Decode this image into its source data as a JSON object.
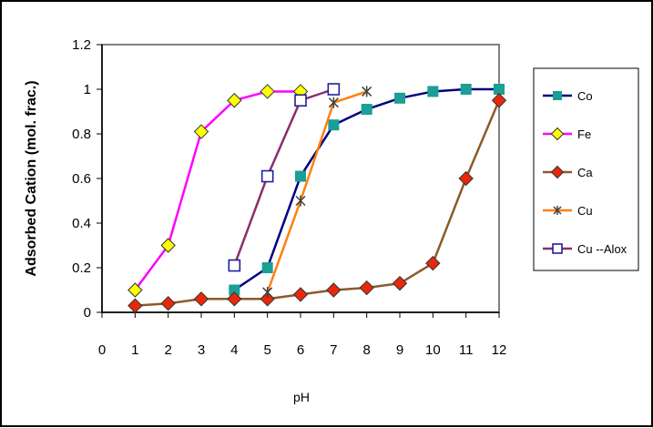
{
  "chart_data": {
    "type": "line",
    "title": "",
    "xlabel": "pH",
    "ylabel": "Adsorbed Cation (mol. frac.)",
    "xlim": [
      0,
      12
    ],
    "ylim": [
      0,
      1.2
    ],
    "x_ticks": [
      "0",
      "1",
      "2",
      "3",
      "4",
      "5",
      "6",
      "7",
      "8",
      "9",
      "10",
      "11",
      "12"
    ],
    "y_ticks": [
      "0",
      "0.2",
      "0.4",
      "0.6",
      "0.8",
      "1",
      "1.2"
    ],
    "grid": false,
    "legend_position": "right",
    "series": [
      {
        "name": "Co",
        "color": "#000080",
        "marker": "square",
        "marker_color": "#1A9E96",
        "x": [
          4,
          5,
          6,
          7,
          8,
          9,
          10,
          11,
          12
        ],
        "y": [
          0.1,
          0.2,
          0.61,
          0.84,
          0.91,
          0.96,
          0.99,
          1.0,
          1.0
        ]
      },
      {
        "name": "Fe",
        "color": "#FF00FF",
        "marker": "diamond",
        "marker_color": "#FFFF00",
        "x": [
          1,
          2,
          3,
          4,
          5,
          6
        ],
        "y": [
          0.1,
          0.3,
          0.81,
          0.95,
          0.99,
          0.99
        ]
      },
      {
        "name": "Ca",
        "color": "#8B5A2B",
        "marker": "diamond",
        "marker_color": "#E8280A",
        "x": [
          1,
          2,
          3,
          4,
          5,
          6,
          7,
          8,
          9,
          10,
          11,
          12
        ],
        "y": [
          0.03,
          0.04,
          0.06,
          0.06,
          0.06,
          0.08,
          0.1,
          0.11,
          0.13,
          0.22,
          0.6,
          0.95
        ]
      },
      {
        "name": "Cu",
        "color": "#FF7F0E",
        "marker": "star",
        "marker_color": "#404040",
        "x": [
          5,
          6,
          7,
          8
        ],
        "y": [
          0.09,
          0.5,
          0.94,
          0.99
        ]
      },
      {
        "name": "Cu --Alox",
        "color": "#8B2E6B",
        "marker": "open-square",
        "marker_color": "#1F1F9F",
        "x": [
          4,
          5,
          6,
          7
        ],
        "y": [
          0.21,
          0.61,
          0.95,
          1.0
        ]
      }
    ]
  }
}
